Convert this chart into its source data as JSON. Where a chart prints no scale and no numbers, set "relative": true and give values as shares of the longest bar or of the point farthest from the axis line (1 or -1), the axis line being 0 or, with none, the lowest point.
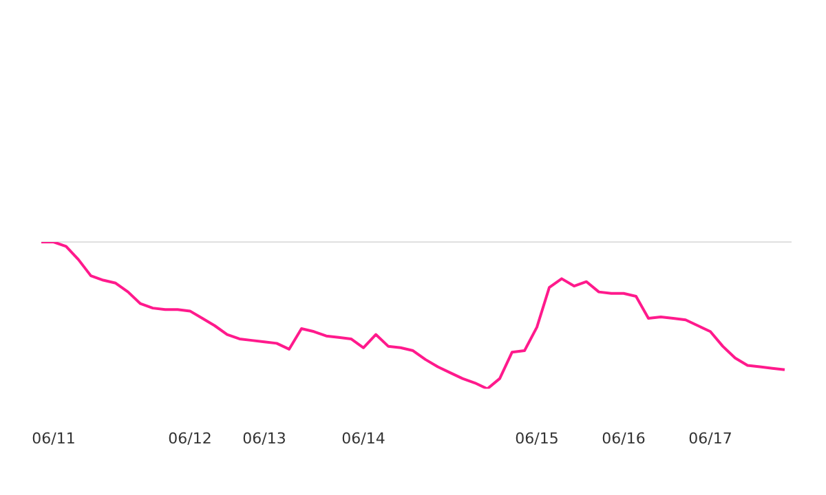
{
  "chart_data": {
    "type": "line",
    "relative": true,
    "categories": [
      null,
      "06/11",
      null,
      null,
      null,
      null,
      null,
      null,
      null,
      null,
      null,
      null,
      "06/12",
      null,
      null,
      null,
      null,
      null,
      "06/13",
      null,
      null,
      null,
      null,
      null,
      null,
      null,
      "06/14",
      null,
      null,
      null,
      null,
      null,
      null,
      null,
      null,
      null,
      null,
      null,
      null,
      null,
      "06/15",
      null,
      null,
      null,
      null,
      null,
      null,
      "06/16",
      null,
      null,
      null,
      null,
      null,
      null,
      "06/17",
      null,
      null,
      null,
      null,
      null,
      null
    ],
    "series": [
      {
        "color": "#ff1a8c",
        "values": [
          1,
          1,
          0.97,
          0.88,
          0.77,
          0.74,
          0.72,
          0.66,
          0.58,
          0.55,
          0.54,
          0.54,
          0.53,
          0.48,
          0.43,
          0.37,
          0.34,
          0.33,
          0.32,
          0.31,
          0.27,
          0.41,
          0.39,
          0.36,
          0.35,
          0.34,
          0.28,
          0.37,
          0.29,
          0.28,
          0.26,
          0.2,
          0.15,
          0.11,
          0.07,
          0.04,
          0,
          0.07,
          0.25,
          0.26,
          0.42,
          0.69,
          0.75,
          0.7,
          0.73,
          0.66,
          0.65,
          0.65,
          0.63,
          0.48,
          0.49,
          0.48,
          0.47,
          0.43,
          0.39,
          0.29,
          0.21,
          0.16,
          0.15,
          0.14,
          0.13
        ]
      }
    ],
    "ref_lines": [
      {
        "axis": "y",
        "value": 1,
        "color": "#e0e0e0"
      }
    ],
    "grid": false,
    "legend": false,
    "marker": "none",
    "line_style": "solid"
  }
}
